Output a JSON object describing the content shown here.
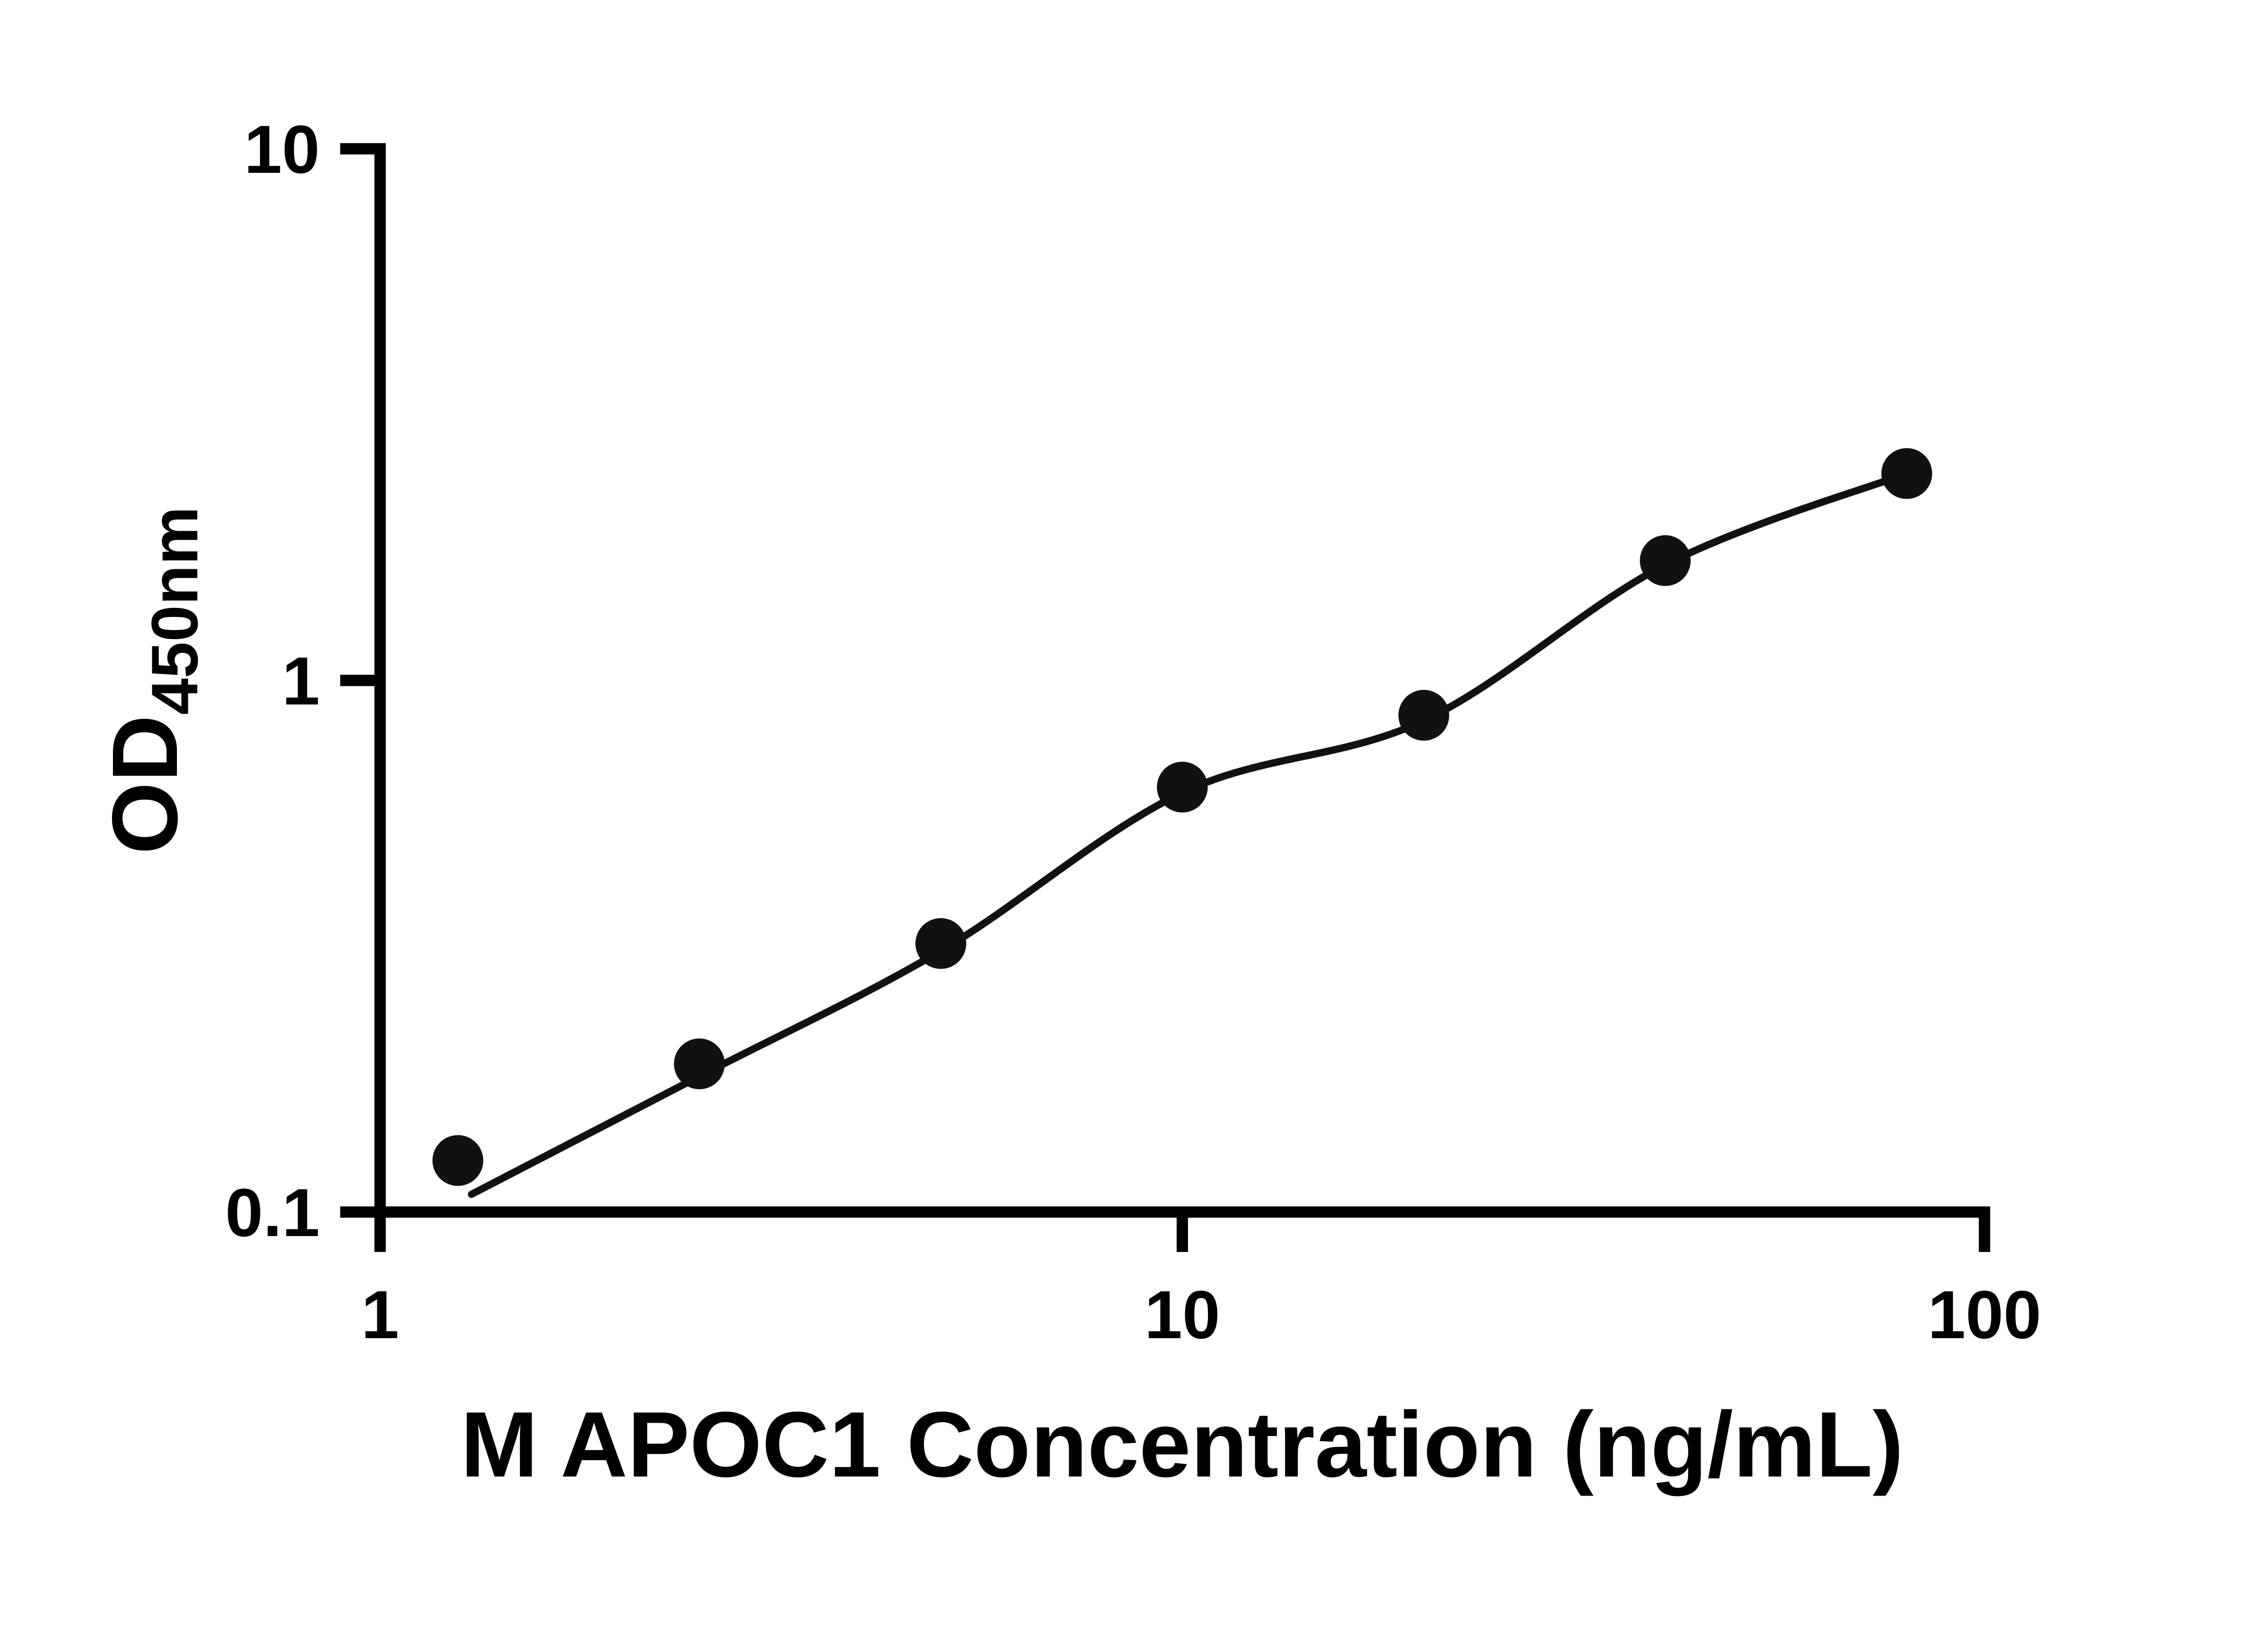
{
  "page": {
    "background_color": "#ffffff",
    "axis_color": "#000000"
  },
  "chart_data": {
    "type": "scatter",
    "title": "",
    "xlabel": "M APOC1 Concentration (ng/mL)",
    "ylabel_main": "OD",
    "ylabel_sub": "450nm",
    "x_scale": "log",
    "y_scale": "log",
    "xlim": [
      1,
      100
    ],
    "ylim": [
      0.1,
      10
    ],
    "grid": false,
    "legend": "none",
    "x_ticks": [
      {
        "value": 1,
        "label": "1"
      },
      {
        "value": 10,
        "label": "10"
      },
      {
        "value": 100,
        "label": "100"
      }
    ],
    "y_ticks": [
      {
        "value": 0.1,
        "label": "0.1"
      },
      {
        "value": 1,
        "label": "1"
      },
      {
        "value": 10,
        "label": "10"
      }
    ],
    "points": {
      "x": [
        1.25,
        2.5,
        5,
        10,
        20,
        40,
        80
      ],
      "y": [
        0.125,
        0.19,
        0.32,
        0.63,
        0.86,
        1.68,
        2.45
      ],
      "marker": "circle",
      "color": "#111111"
    },
    "fit_curve": {
      "x": [
        1.3,
        2.5,
        5,
        10,
        20,
        40,
        80
      ],
      "y": [
        0.108,
        0.18,
        0.31,
        0.615,
        0.84,
        1.65,
        2.45
      ],
      "color": "#111111"
    }
  }
}
